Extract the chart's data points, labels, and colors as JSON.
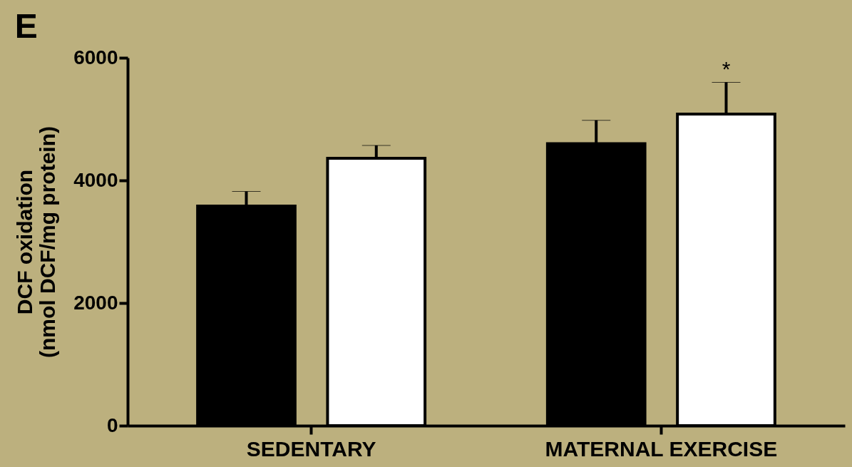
{
  "chart_data": {
    "type": "bar",
    "title": "E",
    "ylabel": "DCF oxidation\n(nmol DCF/mg protein)",
    "categories": [
      "SEDENTARY",
      "MATERNAL EXERCISE"
    ],
    "series": [
      {
        "color": "#000000",
        "values": [
          3580,
          4600
        ],
        "errors": [
          [
            3580,
            3820
          ],
          [
            4600,
            4980
          ]
        ]
      },
      {
        "color": "#ffffff",
        "values": [
          4360,
          5080
        ],
        "errors": [
          [
            4360,
            4570
          ],
          [
            5080,
            5600
          ]
        ]
      }
    ],
    "ylim": [
      0,
      6000
    ],
    "yticks": [
      0,
      2000,
      4000,
      6000
    ],
    "grid": false,
    "legend": false,
    "annotations": [
      "*"
    ]
  }
}
